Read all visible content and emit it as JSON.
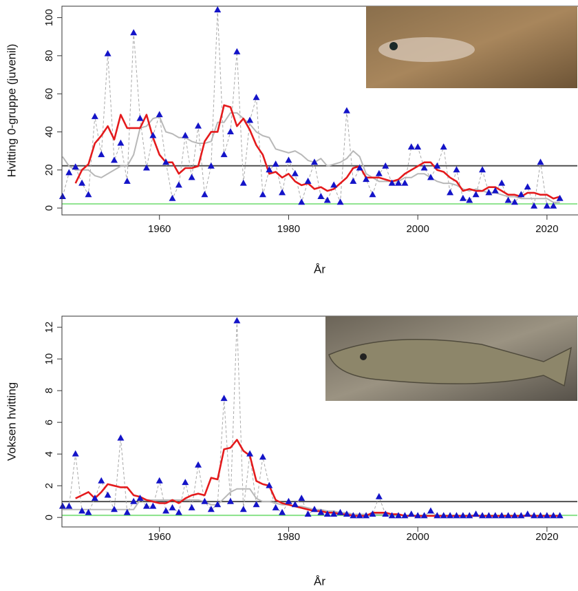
{
  "chart_data": [
    {
      "type": "line",
      "ylabel": "Hvitting 0-gruppe (juvenil)",
      "xlabel": "År",
      "x": [
        1945,
        1946,
        1947,
        1948,
        1949,
        1950,
        1951,
        1952,
        1953,
        1954,
        1955,
        1956,
        1957,
        1958,
        1959,
        1960,
        1961,
        1962,
        1963,
        1964,
        1965,
        1966,
        1967,
        1968,
        1969,
        1970,
        1971,
        1972,
        1973,
        1974,
        1975,
        1976,
        1977,
        1978,
        1979,
        1980,
        1981,
        1982,
        1983,
        1984,
        1985,
        1986,
        1987,
        1988,
        1989,
        1990,
        1991,
        1992,
        1993,
        1994,
        1995,
        1996,
        1997,
        1998,
        1999,
        2000,
        2001,
        2002,
        2003,
        2004,
        2005,
        2006,
        2007,
        2008,
        2009,
        2010,
        2011,
        2012,
        2013,
        2014,
        2015,
        2016,
        2017,
        2018,
        2019,
        2020,
        2021,
        2022
      ],
      "xlim": [
        1944.9,
        2024.7
      ],
      "xticks": [
        1960,
        1980,
        2000,
        2020
      ],
      "ylim": [
        -3.6,
        106
      ],
      "yticks": [
        0,
        20,
        40,
        60,
        80,
        100
      ],
      "series": [
        {
          "color": "#1414c8",
          "marker": "triangle",
          "line_color": "#a8a8a8",
          "line_dash": true,
          "values": [
            6,
            18.5,
            21.5,
            13,
            7,
            48,
            28,
            81,
            25,
            34,
            14,
            92,
            47,
            21,
            38,
            49,
            24,
            5,
            12,
            38,
            16,
            43,
            7,
            22,
            104,
            28,
            40,
            82,
            13,
            46,
            58,
            7,
            20,
            23,
            8,
            25,
            18,
            3,
            14,
            24,
            6,
            4,
            12,
            3,
            51,
            14,
            21,
            15,
            7,
            18,
            22,
            13,
            13,
            13,
            32,
            32,
            21,
            16,
            22,
            32,
            8,
            20,
            5,
            4,
            7,
            20,
            8,
            9,
            13,
            4,
            3,
            7,
            11,
            1,
            24,
            1,
            1,
            5
          ]
        },
        {
          "color": "#b8b8b8",
          "line_width": 2,
          "values": [
            27,
            22,
            20,
            20,
            20,
            17,
            16,
            18,
            20,
            22,
            22,
            28,
            42,
            43,
            47,
            48,
            40,
            39,
            37,
            37,
            35,
            34,
            34,
            35,
            45,
            45,
            50,
            50,
            47,
            44,
            40,
            38,
            37,
            31,
            30,
            29,
            30,
            28,
            25,
            24,
            26,
            22,
            23,
            24,
            26,
            30,
            27,
            18,
            16,
            14,
            14,
            14,
            14,
            16,
            16,
            18,
            18,
            16,
            14,
            13,
            13,
            12,
            10,
            9,
            10,
            9,
            8,
            8,
            7,
            6,
            6,
            5,
            5,
            5,
            5,
            5,
            3,
            3
          ]
        },
        {
          "color": "#e41a1c",
          "line_width": 2.6,
          "values": [
            null,
            null,
            13,
            20,
            23,
            34,
            38,
            43,
            36,
            49,
            42,
            42,
            42,
            49,
            37,
            28,
            24,
            24,
            18,
            21,
            21,
            22,
            35,
            40,
            40,
            54,
            53,
            43,
            47,
            41,
            33,
            28,
            18,
            19,
            16,
            18,
            14,
            12,
            13,
            10,
            11,
            9,
            10,
            13,
            16,
            21,
            22,
            16,
            16,
            16,
            15,
            14,
            15,
            18,
            20,
            22,
            24,
            24,
            20,
            19,
            16,
            14,
            9,
            10,
            9,
            9,
            11,
            11,
            9,
            7,
            7,
            6,
            8,
            8,
            7,
            7,
            5,
            6
          ]
        }
      ],
      "hlines": [
        {
          "value": 22.2,
          "color": "#444444"
        },
        {
          "value": 2.2,
          "color": "#80e080"
        }
      ]
    },
    {
      "type": "line",
      "ylabel": "Voksen hvitting",
      "xlabel": "År",
      "x": [
        1945,
        1946,
        1947,
        1948,
        1949,
        1950,
        1951,
        1952,
        1953,
        1954,
        1955,
        1956,
        1957,
        1958,
        1959,
        1960,
        1961,
        1962,
        1963,
        1964,
        1965,
        1966,
        1967,
        1968,
        1969,
        1970,
        1971,
        1972,
        1973,
        1974,
        1975,
        1976,
        1977,
        1978,
        1979,
        1980,
        1981,
        1982,
        1983,
        1984,
        1985,
        1986,
        1987,
        1988,
        1989,
        1990,
        1991,
        1992,
        1993,
        1994,
        1995,
        1996,
        1997,
        1998,
        1999,
        2000,
        2001,
        2002,
        2003,
        2004,
        2005,
        2006,
        2007,
        2008,
        2009,
        2010,
        2011,
        2012,
        2013,
        2014,
        2015,
        2016,
        2017,
        2018,
        2019,
        2020,
        2021,
        2022
      ],
      "xlim": [
        1944.9,
        2024.7
      ],
      "xticks": [
        1960,
        1980,
        2000,
        2020
      ],
      "ylim": [
        -0.6,
        12.7
      ],
      "yticks": [
        0,
        2,
        4,
        6,
        8,
        10,
        12
      ],
      "series": [
        {
          "color": "#1414c8",
          "marker": "triangle",
          "line_color": "#a8a8a8",
          "line_dash": true,
          "values": [
            0.7,
            0.7,
            4.0,
            0.4,
            0.3,
            1.2,
            2.3,
            1.4,
            0.5,
            5.0,
            0.3,
            1.0,
            1.2,
            0.7,
            0.7,
            2.3,
            0.4,
            0.6,
            0.3,
            2.2,
            0.6,
            3.3,
            1.0,
            0.5,
            0.8,
            7.5,
            1.0,
            12.4,
            0.5,
            4.0,
            0.8,
            3.8,
            2.0,
            0.6,
            0.3,
            1.0,
            0.8,
            1.2,
            0.2,
            0.5,
            0.3,
            0.2,
            0.2,
            0.3,
            0.2,
            0.1,
            0.1,
            0.1,
            0.2,
            1.3,
            0.2,
            0.1,
            0.1,
            0.1,
            0.2,
            0.1,
            0.1,
            0.4,
            0.1,
            0.1,
            0.1,
            0.1,
            0.1,
            0.1,
            0.2,
            0.1,
            0.1,
            0.1,
            0.1,
            0.1,
            0.1,
            0.1,
            0.2,
            0.1,
            0.1,
            0.1,
            0.1,
            0.1
          ]
        },
        {
          "color": "#b8b8b8",
          "line_width": 2,
          "values": [
            0.5,
            0.5,
            0.5,
            0.5,
            0.5,
            0.5,
            0.5,
            0.5,
            0.5,
            0.5,
            0.5,
            0.5,
            1.1,
            1.1,
            1.1,
            1.1,
            1.1,
            1.1,
            1.1,
            1.1,
            1.1,
            1.1,
            1.0,
            0.8,
            0.8,
            1.2,
            1.6,
            1.8,
            1.8,
            1.8,
            1.2,
            1.0,
            1.0,
            0.9,
            0.8,
            0.8,
            0.7,
            0.7,
            0.6,
            0.5,
            0.5,
            0.4,
            0.4,
            0.3,
            0.3,
            0.2,
            0.2,
            0.2,
            0.2,
            0.2,
            0.2,
            0.2,
            0.2,
            0.1,
            0.1,
            0.1,
            0.1,
            0.1,
            0.1,
            0.1,
            0.1,
            0.1,
            0.1,
            0.1,
            0.1,
            0.1,
            0.1,
            0.1,
            0.1,
            0.1,
            0.1,
            0.1,
            0.1,
            0.1,
            0.1,
            0.1,
            0.1,
            0.1
          ]
        },
        {
          "color": "#e41a1c",
          "line_width": 2.6,
          "values": [
            null,
            null,
            1.2,
            1.4,
            1.6,
            1.2,
            1.6,
            2.1,
            2.0,
            1.9,
            1.9,
            1.4,
            1.3,
            1.1,
            1.0,
            0.9,
            0.9,
            1.1,
            0.9,
            1.2,
            1.4,
            1.5,
            1.4,
            2.5,
            2.4,
            4.3,
            4.4,
            4.9,
            4.2,
            3.9,
            2.3,
            2.1,
            2.0,
            1.1,
            0.9,
            0.8,
            0.7,
            0.6,
            0.5,
            0.4,
            0.4,
            0.3,
            0.3,
            0.2,
            0.2,
            0.1,
            0.1,
            0.1,
            0.3,
            0.3,
            0.3,
            0.2,
            0.2,
            0.1,
            0.1,
            0.1,
            0.1,
            0.1,
            0.1,
            0.1,
            0.1,
            0.1,
            0.1,
            0.1,
            0.1,
            0.1,
            0.1,
            0.1,
            0.1,
            0.1,
            0.1,
            0.1,
            0.1,
            0.1,
            0.1,
            0.1,
            0.1,
            0.1
          ]
        }
      ],
      "hlines": [
        {
          "value": 1.0,
          "color": "#444444"
        },
        {
          "value": 0.13,
          "color": "#80e080"
        }
      ]
    }
  ]
}
